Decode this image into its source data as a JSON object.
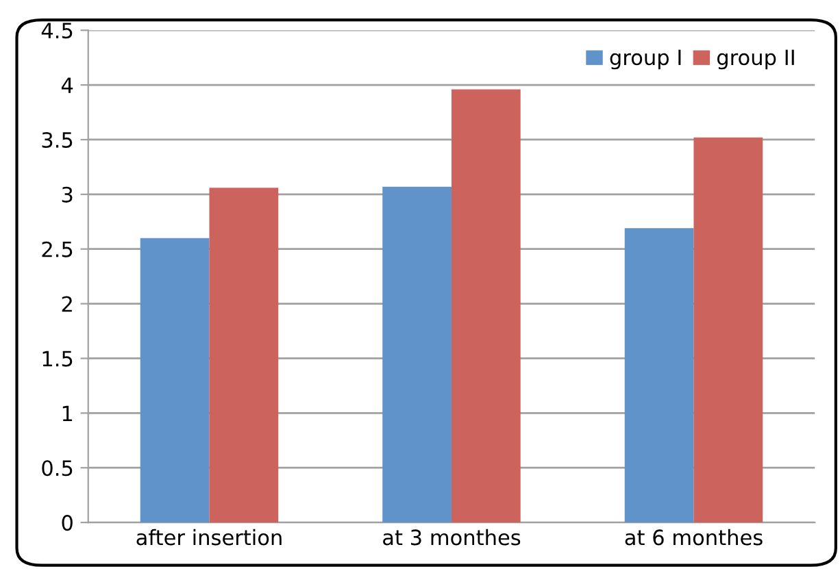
{
  "chart_data": {
    "type": "bar",
    "categories": [
      "after insertion",
      "at 3 monthes",
      "at 6 monthes"
    ],
    "series": [
      {
        "name": "group I",
        "color": "#5f93c9",
        "values": [
          2.6,
          3.07,
          2.69
        ]
      },
      {
        "name": "group II",
        "color": "#cd635d",
        "values": [
          3.06,
          3.96,
          3.52
        ]
      }
    ],
    "ylim": [
      0,
      4.5
    ],
    "yticks": [
      0,
      0.5,
      1,
      1.5,
      2,
      2.5,
      3,
      3.5,
      4,
      4.5
    ],
    "grid": "y",
    "legend": "top right"
  }
}
